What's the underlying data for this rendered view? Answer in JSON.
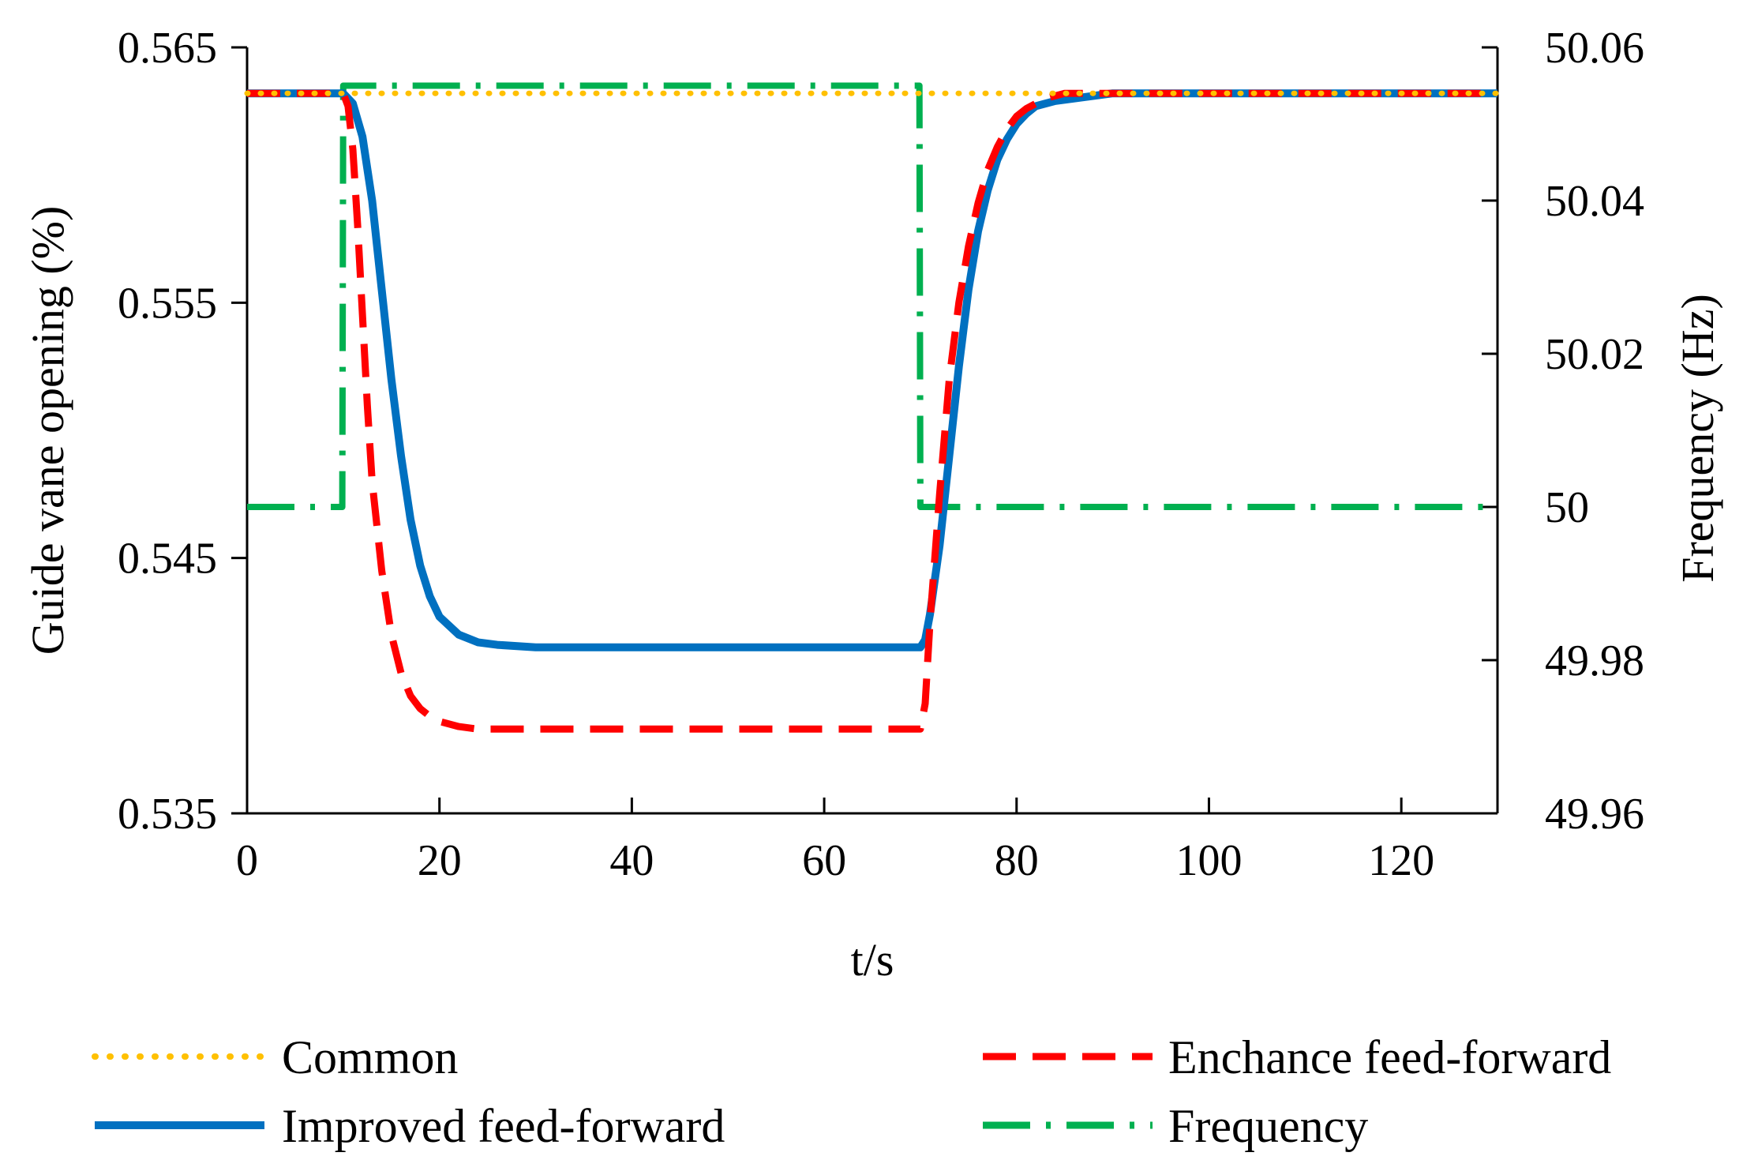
{
  "chart_data": {
    "type": "line",
    "title": "",
    "xlabel": "t/s",
    "ylabel": "Guide vane opening (%)",
    "y2label": "Frequency (Hz)",
    "xlim": [
      0,
      130
    ],
    "ylim": [
      0.535,
      0.565
    ],
    "y2lim": [
      49.96,
      50.06
    ],
    "x_ticks": [
      0,
      20,
      40,
      60,
      80,
      100,
      120
    ],
    "x_tick_labels": [
      "0",
      "20",
      "40",
      "60",
      "80",
      "100",
      "120"
    ],
    "y_ticks": [
      0.535,
      0.545,
      0.555,
      0.565
    ],
    "y_tick_labels": [
      "0.535",
      "0.545",
      "0.555",
      "0.565"
    ],
    "y2_ticks": [
      49.96,
      49.98,
      50,
      50.02,
      50.04,
      50.06
    ],
    "y2_tick_labels": [
      "49.96",
      "49.98",
      "50",
      "50.02",
      "50.04",
      "50.06"
    ],
    "grid": false,
    "legend_position": "bottom",
    "series": [
      {
        "name": "Common",
        "axis": "left",
        "color": "#FFC000",
        "style": "dotted",
        "x": [
          0,
          10,
          20,
          40,
          60,
          70,
          80,
          85,
          100,
          130
        ],
        "values": [
          0.5632,
          0.5632,
          0.5632,
          0.5632,
          0.5632,
          0.5632,
          0.5632,
          0.5632,
          0.5632,
          0.5632
        ]
      },
      {
        "name": "Enchance feed-forward",
        "axis": "left",
        "color": "#FF0000",
        "style": "dashed",
        "x": [
          0,
          10,
          10.5,
          11,
          11.5,
          12,
          12.5,
          13,
          14,
          15,
          16,
          17,
          18,
          19,
          20,
          22,
          24,
          26,
          30,
          40,
          50,
          60,
          70,
          70.5,
          71,
          72,
          73,
          74,
          75,
          76,
          77,
          78,
          79,
          80,
          81,
          83,
          85,
          90,
          100,
          130
        ],
        "values": [
          0.5632,
          0.5632,
          0.5627,
          0.561,
          0.558,
          0.5545,
          0.551,
          0.548,
          0.5445,
          0.542,
          0.5405,
          0.5396,
          0.5391,
          0.5388,
          0.5386,
          0.5384,
          0.5383,
          0.5383,
          0.5383,
          0.5383,
          0.5383,
          0.5383,
          0.5383,
          0.5393,
          0.5425,
          0.5475,
          0.552,
          0.555,
          0.5572,
          0.5589,
          0.5602,
          0.5611,
          0.5618,
          0.5623,
          0.5626,
          0.563,
          0.5632,
          0.5632,
          0.5632,
          0.5632
        ]
      },
      {
        "name": "Improved feed-forward",
        "axis": "left",
        "color": "#0070C0",
        "style": "solid",
        "x": [
          0,
          10,
          11,
          12,
          13,
          14,
          15,
          16,
          17,
          18,
          19,
          20,
          22,
          24,
          26,
          30,
          40,
          50,
          60,
          70,
          70.5,
          71,
          72,
          73,
          74,
          75,
          76,
          77,
          78,
          79,
          80,
          81,
          82,
          84,
          86,
          88,
          90,
          100,
          130
        ],
        "values": [
          0.5632,
          0.5632,
          0.5628,
          0.5615,
          0.559,
          0.5555,
          0.552,
          0.549,
          0.5465,
          0.5447,
          0.5435,
          0.5427,
          0.542,
          0.5417,
          0.5416,
          0.5415,
          0.5415,
          0.5415,
          0.5415,
          0.5415,
          0.5418,
          0.5428,
          0.5455,
          0.549,
          0.5525,
          0.5555,
          0.5578,
          0.5594,
          0.5606,
          0.5614,
          0.562,
          0.5624,
          0.5627,
          0.5629,
          0.563,
          0.5631,
          0.5632,
          0.5632,
          0.5632
        ]
      },
      {
        "name": "Frequency",
        "axis": "right",
        "color": "#00B050",
        "style": "dash-dot",
        "x": [
          0,
          9.9,
          10,
          69.9,
          70,
          130
        ],
        "values": [
          50.0,
          50.0,
          50.055,
          50.055,
          50.0,
          50.0
        ]
      }
    ]
  }
}
